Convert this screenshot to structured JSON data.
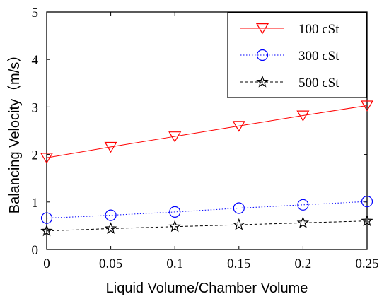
{
  "chart_data": {
    "type": "line",
    "title": "",
    "xlabel": "Liquid Volume/Chamber Volume",
    "ylabel": "Balancing Velocity（m/s）",
    "x": [
      0,
      0.05,
      0.1,
      0.15,
      0.2,
      0.25
    ],
    "x_tick_labels": [
      "0",
      "0.05",
      "0.1",
      "0.15",
      "0.2",
      "0.25"
    ],
    "y_tick_labels": [
      "0",
      "1",
      "2",
      "3",
      "4",
      "5"
    ],
    "xlim": [
      0,
      0.25
    ],
    "ylim": [
      0,
      5
    ],
    "grid": false,
    "legend_position": "top-right",
    "series": [
      {
        "name": "100 cSt",
        "color": "#ff0000",
        "line_style": "solid",
        "marker": "triangle-down",
        "values": [
          1.93,
          2.16,
          2.38,
          2.6,
          2.82,
          3.03
        ]
      },
      {
        "name": "300 cSt",
        "color": "#0000ff",
        "line_style": "dotted",
        "marker": "circle",
        "values": [
          0.66,
          0.72,
          0.79,
          0.87,
          0.94,
          1.01
        ]
      },
      {
        "name": "500 cSt",
        "color": "#000000",
        "line_style": "dashed",
        "marker": "star",
        "values": [
          0.39,
          0.44,
          0.48,
          0.52,
          0.56,
          0.6
        ]
      }
    ]
  }
}
